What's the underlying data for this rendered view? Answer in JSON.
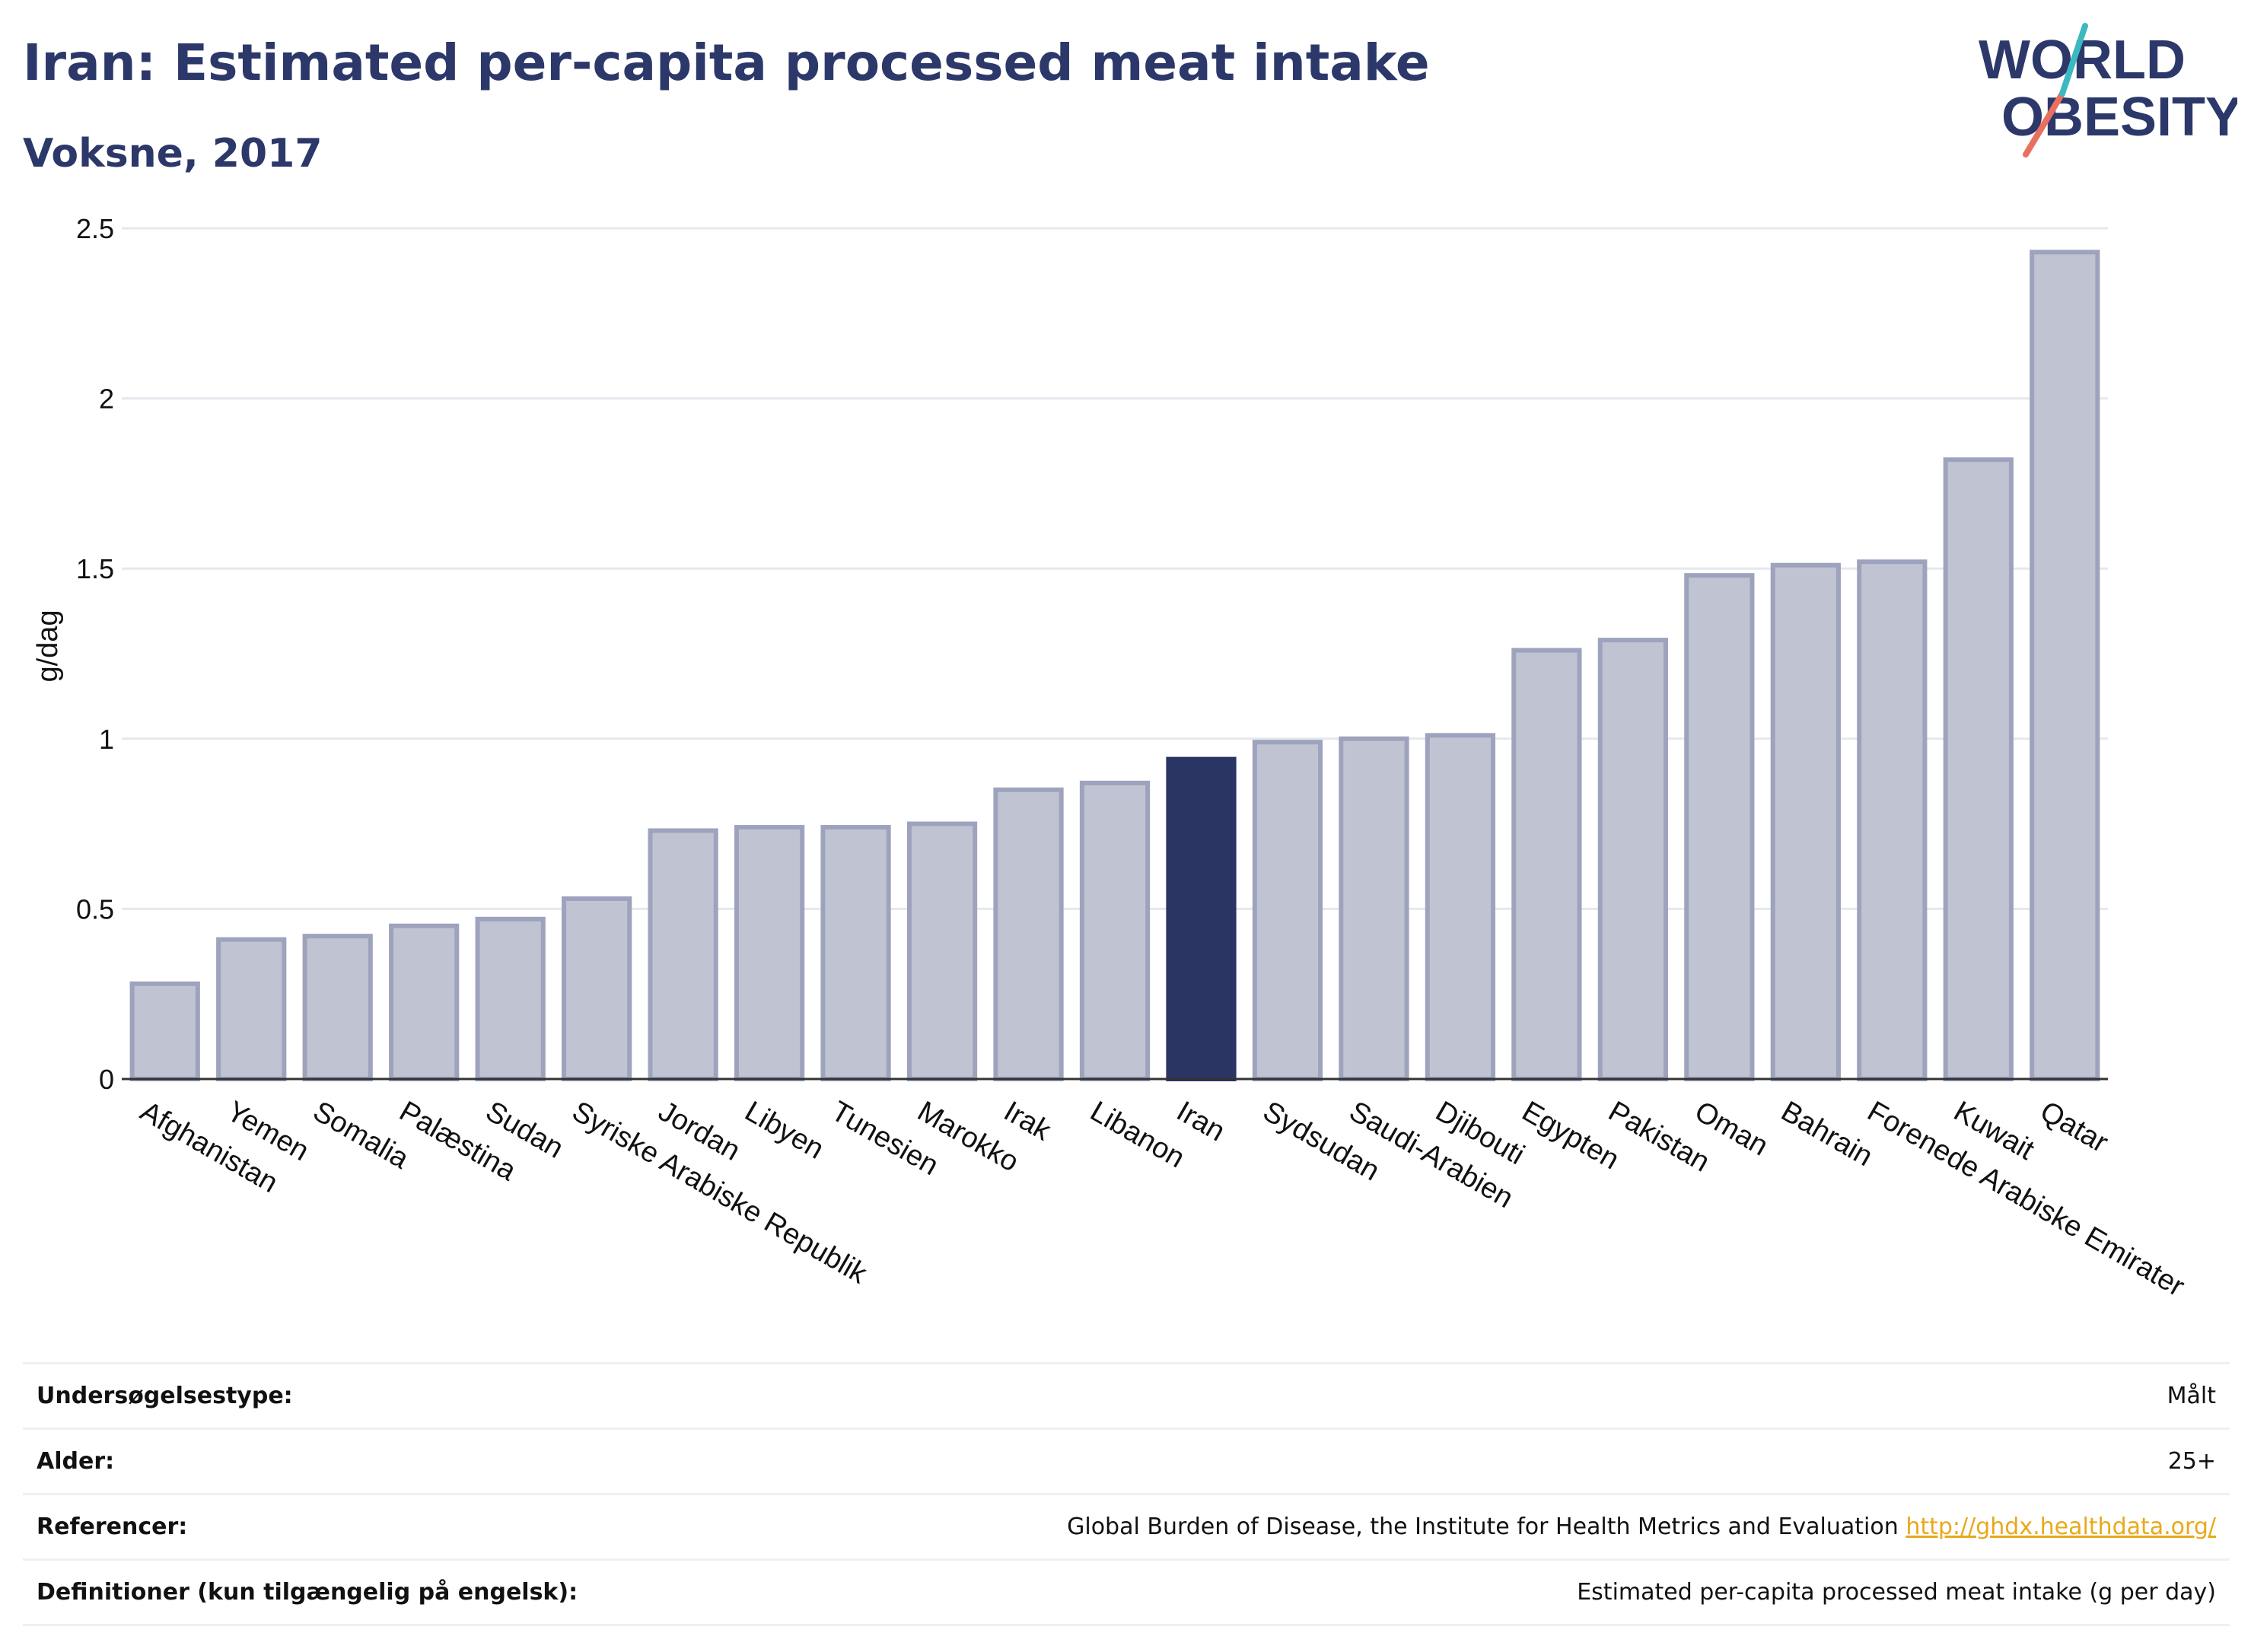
{
  "header": {
    "title": "Iran: Estimated per-capita processed meat intake",
    "subtitle": "Voksne, 2017"
  },
  "logo": {
    "line1": "WORLD",
    "line2": "OBESITY"
  },
  "colors": {
    "highlight": "#2b3563",
    "bar": "#c0c3d2",
    "bar_stroke": "#9ea3bd",
    "grid": "#e6e8ee",
    "link": "#e8a91b"
  },
  "chart_data": {
    "type": "bar",
    "ylabel": "g/dag",
    "ylim": [
      0,
      2.5
    ],
    "yticks": [
      "0",
      "0.5",
      "1",
      "1.5",
      "2",
      "2.5"
    ],
    "highlight": "Iran",
    "categories": [
      "Afghanistan",
      "Yemen",
      "Somalia",
      "Palæstina",
      "Sudan",
      "Syriske Arabiske Republik",
      "Jordan",
      "Libyen",
      "Tunesien",
      "Marokko",
      "Irak",
      "Libanon",
      "Iran",
      "Sydsudan",
      "Saudi-Arabien",
      "Djibouti",
      "Egypten",
      "Pakistan",
      "Oman",
      "Bahrain",
      "Forenede Arabiske Emirater",
      "Kuwait",
      "Qatar"
    ],
    "values": [
      0.28,
      0.41,
      0.42,
      0.45,
      0.47,
      0.53,
      0.73,
      0.74,
      0.74,
      0.75,
      0.85,
      0.87,
      0.94,
      0.99,
      1.0,
      1.01,
      1.26,
      1.29,
      1.48,
      1.51,
      1.52,
      1.82,
      2.43
    ]
  },
  "info": [
    {
      "label": "Undersøgelsestype:",
      "value": "Målt"
    },
    {
      "label": "Alder:",
      "value": "25+"
    },
    {
      "label": "Referencer:",
      "value": "Global Burden of Disease, the Institute for Health Metrics and Evaluation",
      "link": "http://ghdx.healthdata.org/"
    },
    {
      "label": "Definitioner (kun tilgængelig på engelsk):",
      "value": "Estimated per-capita processed meat intake (g per day)"
    }
  ]
}
